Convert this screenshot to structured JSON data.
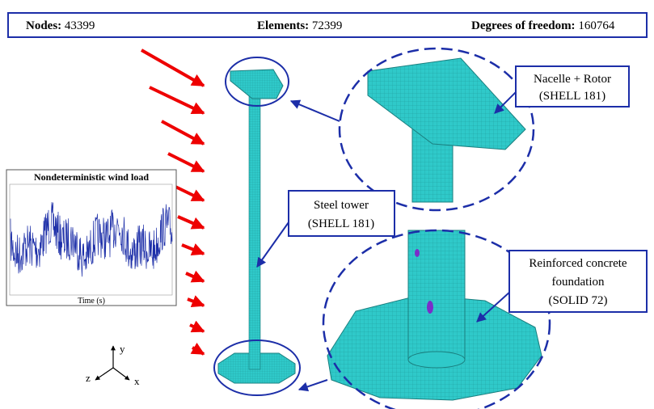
{
  "header": {
    "nodes": {
      "label": "Nodes:",
      "value": 43399
    },
    "elements": {
      "label": "Elements:",
      "value": 72399
    },
    "dof": {
      "label": "Degrees of freedom:",
      "value": 160764
    }
  },
  "callouts": {
    "nacelle": [
      "Nacelle + Rotor",
      "(SHELL 181)"
    ],
    "tower": [
      "Steel tower",
      "(SHELL 181)"
    ],
    "foundation": [
      "Reinforced concrete",
      "foundation",
      "(SOLID 72)"
    ]
  },
  "inset": {
    "title": "Nondeterministic wind load",
    "xlabel": "Time (s)"
  },
  "axes": {
    "y": "y",
    "z": "z",
    "x": "x"
  }
}
